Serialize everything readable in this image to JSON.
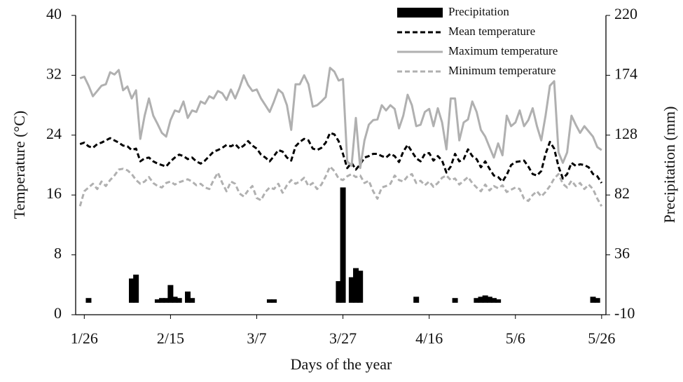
{
  "chart_data": {
    "type": "combo",
    "x_label": "Days of the year",
    "y_label": "Temperature (°C)",
    "y2_label": "Precipitation (mm)",
    "xlim": [
      24,
      147
    ],
    "xticks": [
      {
        "value": 26,
        "label": "1/26"
      },
      {
        "value": 46,
        "label": "2/15"
      },
      {
        "value": 66,
        "label": "3/7"
      },
      {
        "value": 86,
        "label": "3/27"
      },
      {
        "value": 106,
        "label": "4/16"
      },
      {
        "value": 126,
        "label": "5/6"
      },
      {
        "value": 146,
        "label": "5/26"
      }
    ],
    "ylim": [
      0,
      40
    ],
    "yticks": [
      0,
      8,
      16,
      24,
      32,
      40
    ],
    "y2lim": [
      -10,
      220
    ],
    "y2ticks": [
      -10,
      36,
      82,
      128,
      174,
      220
    ],
    "x": [
      25,
      26,
      27,
      28,
      29,
      30,
      31,
      32,
      33,
      34,
      35,
      36,
      37,
      38,
      39,
      40,
      41,
      42,
      43,
      44,
      45,
      46,
      47,
      48,
      49,
      50,
      51,
      52,
      53,
      54,
      55,
      56,
      57,
      58,
      59,
      60,
      61,
      62,
      63,
      64,
      65,
      66,
      67,
      68,
      69,
      70,
      71,
      72,
      73,
      74,
      75,
      76,
      77,
      78,
      79,
      80,
      81,
      82,
      83,
      84,
      85,
      86,
      87,
      88,
      89,
      90,
      91,
      92,
      93,
      94,
      95,
      96,
      97,
      98,
      99,
      100,
      101,
      102,
      103,
      104,
      105,
      106,
      107,
      108,
      109,
      110,
      111,
      112,
      113,
      114,
      115,
      116,
      117,
      118,
      119,
      120,
      121,
      122,
      123,
      124,
      125,
      126,
      127,
      128,
      129,
      130,
      131,
      132,
      133,
      134,
      135,
      136,
      137,
      138,
      139,
      140,
      141,
      142,
      143,
      144,
      145,
      146
    ],
    "series": [
      {
        "name": "Precipitation",
        "type": "bar",
        "axis": "y2",
        "color": "#000000",
        "values": [
          null,
          null,
          2,
          0,
          null,
          0,
          0,
          null,
          0,
          0,
          0,
          0,
          17,
          20,
          0,
          0,
          0,
          0,
          1,
          2,
          2,
          12,
          3,
          2,
          0,
          7,
          2,
          0,
          0,
          0,
          null,
          null,
          null,
          null,
          0,
          null,
          null,
          null,
          0,
          null,
          null,
          null,
          null,
          null,
          1,
          1,
          null,
          null,
          null,
          0,
          0,
          0,
          0,
          null,
          null,
          0,
          0,
          null,
          null,
          0,
          15,
          87,
          0,
          18,
          25,
          23,
          0,
          0,
          0,
          0,
          0,
          0,
          0,
          0,
          0,
          0,
          null,
          null,
          3,
          0,
          0,
          0,
          0,
          0,
          0,
          null,
          0,
          2,
          0,
          0,
          0,
          0,
          2,
          3,
          4,
          3,
          2,
          1,
          0,
          0,
          0,
          0,
          null,
          0,
          0,
          0,
          null,
          null,
          null,
          null,
          null,
          0,
          0,
          0,
          0,
          0,
          0,
          0,
          0,
          3,
          2,
          0
        ]
      },
      {
        "name": "Mean temperature",
        "type": "line",
        "dash": true,
        "color": "#000000",
        "values": [
          22.8,
          23.0,
          22.5,
          22.3,
          22.8,
          23.0,
          23.3,
          23.6,
          23.3,
          23.0,
          22.6,
          22.5,
          22.0,
          22.2,
          20.5,
          20.9,
          21.0,
          20.5,
          20.2,
          20.0,
          19.8,
          20.5,
          21.0,
          21.4,
          21.2,
          20.8,
          21.0,
          20.5,
          20.2,
          20.6,
          21.2,
          21.8,
          22.0,
          22.3,
          22.7,
          22.5,
          22.8,
          22.2,
          22.6,
          23.2,
          22.6,
          22.2,
          21.4,
          21.0,
          20.5,
          21.2,
          22.0,
          21.8,
          21.0,
          20.6,
          22.5,
          23.1,
          23.5,
          23.3,
          22.2,
          22.0,
          22.3,
          23.0,
          24.3,
          24.1,
          23.2,
          21.5,
          19.6,
          20.3,
          19.4,
          20.1,
          21.0,
          21.2,
          21.5,
          21.5,
          21.2,
          21.0,
          21.5,
          21.2,
          20.4,
          21.8,
          22.7,
          21.8,
          20.9,
          20.5,
          21.5,
          21.6,
          20.6,
          21.2,
          20.6,
          19.0,
          19.8,
          21.5,
          20.5,
          20.8,
          22.1,
          21.2,
          20.8,
          19.7,
          20.5,
          19.5,
          18.6,
          18.4,
          17.8,
          18.7,
          20.0,
          20.4,
          20.5,
          20.6,
          19.8,
          18.8,
          18.6,
          19.2,
          21.5,
          23.1,
          22.2,
          19.8,
          18.2,
          18.8,
          20.3,
          19.9,
          20.1,
          20.0,
          19.7,
          18.8,
          18.5,
          17.6
        ]
      },
      {
        "name": "Maximum temperature",
        "type": "line",
        "dash": false,
        "color": "#b0b0b0",
        "values": [
          31.6,
          31.8,
          30.6,
          29.2,
          29.9,
          30.6,
          30.8,
          32.4,
          32.1,
          32.7,
          30.0,
          30.5,
          28.9,
          30.0,
          23.5,
          26.6,
          28.9,
          26.6,
          25.5,
          24.3,
          23.8,
          26.0,
          27.3,
          27.1,
          28.5,
          26.3,
          27.3,
          27.1,
          28.5,
          28.2,
          29.2,
          28.9,
          29.9,
          29.6,
          28.7,
          30.1,
          28.9,
          30.3,
          32.0,
          30.7,
          29.9,
          30.1,
          28.9,
          28.0,
          27.1,
          28.5,
          30.1,
          29.6,
          28.0,
          24.7,
          30.8,
          30.8,
          32.0,
          30.8,
          27.8,
          28.0,
          28.5,
          29.1,
          33.0,
          32.5,
          31.3,
          31.5,
          20.5,
          19.9,
          26.3,
          19.6,
          23.3,
          25.4,
          26.0,
          26.1,
          28.0,
          27.3,
          28.0,
          27.5,
          24.9,
          26.6,
          29.4,
          28.0,
          25.2,
          25.4,
          27.1,
          27.5,
          25.2,
          27.6,
          25.7,
          22.1,
          28.9,
          28.9,
          23.3,
          25.7,
          26.1,
          28.5,
          27.1,
          24.7,
          23.8,
          22.4,
          21.0,
          22.9,
          21.3,
          26.6,
          25.2,
          25.7,
          27.3,
          25.2,
          26.0,
          27.6,
          25.2,
          23.3,
          26.6,
          30.6,
          31.2,
          21.7,
          20.3,
          21.7,
          26.6,
          25.4,
          24.3,
          25.2,
          24.5,
          23.8,
          22.4,
          22.0
        ]
      },
      {
        "name": "Minimum temperature",
        "type": "line",
        "dash": true,
        "color": "#b0b0b0",
        "values": [
          14.5,
          16.5,
          17.0,
          17.5,
          16.8,
          17.8,
          17.2,
          18.0,
          18.6,
          19.4,
          19.5,
          19.3,
          18.8,
          18.0,
          17.5,
          17.8,
          18.4,
          17.6,
          17.2,
          17.0,
          17.6,
          17.8,
          17.4,
          17.7,
          17.9,
          18.1,
          17.8,
          17.3,
          17.5,
          17.0,
          16.8,
          18.0,
          19.0,
          17.6,
          16.5,
          17.8,
          17.5,
          16.2,
          15.8,
          16.6,
          17.2,
          15.6,
          15.3,
          16.4,
          17.0,
          16.8,
          17.5,
          16.3,
          17.3,
          18.0,
          17.5,
          17.8,
          18.3,
          17.2,
          17.6,
          16.8,
          17.4,
          18.5,
          19.8,
          19.2,
          18.2,
          18.0,
          18.5,
          18.8,
          18.4,
          18.6,
          17.6,
          17.9,
          16.5,
          15.5,
          17.0,
          17.2,
          17.5,
          18.6,
          18.0,
          17.8,
          18.5,
          18.8,
          17.6,
          17.9,
          17.3,
          17.8,
          17.1,
          17.6,
          18.3,
          18.6,
          18.0,
          18.2,
          17.4,
          17.9,
          18.4,
          17.6,
          17.0,
          16.5,
          17.4,
          16.6,
          17.2,
          16.9,
          17.3,
          16.4,
          16.7,
          17.0,
          16.8,
          15.5,
          15.2,
          16.0,
          16.5,
          15.8,
          16.4,
          17.2,
          18.2,
          18.8,
          17.5,
          17.0,
          17.9,
          17.2,
          17.6,
          16.8,
          17.4,
          16.8,
          15.5,
          14.5
        ]
      }
    ]
  }
}
